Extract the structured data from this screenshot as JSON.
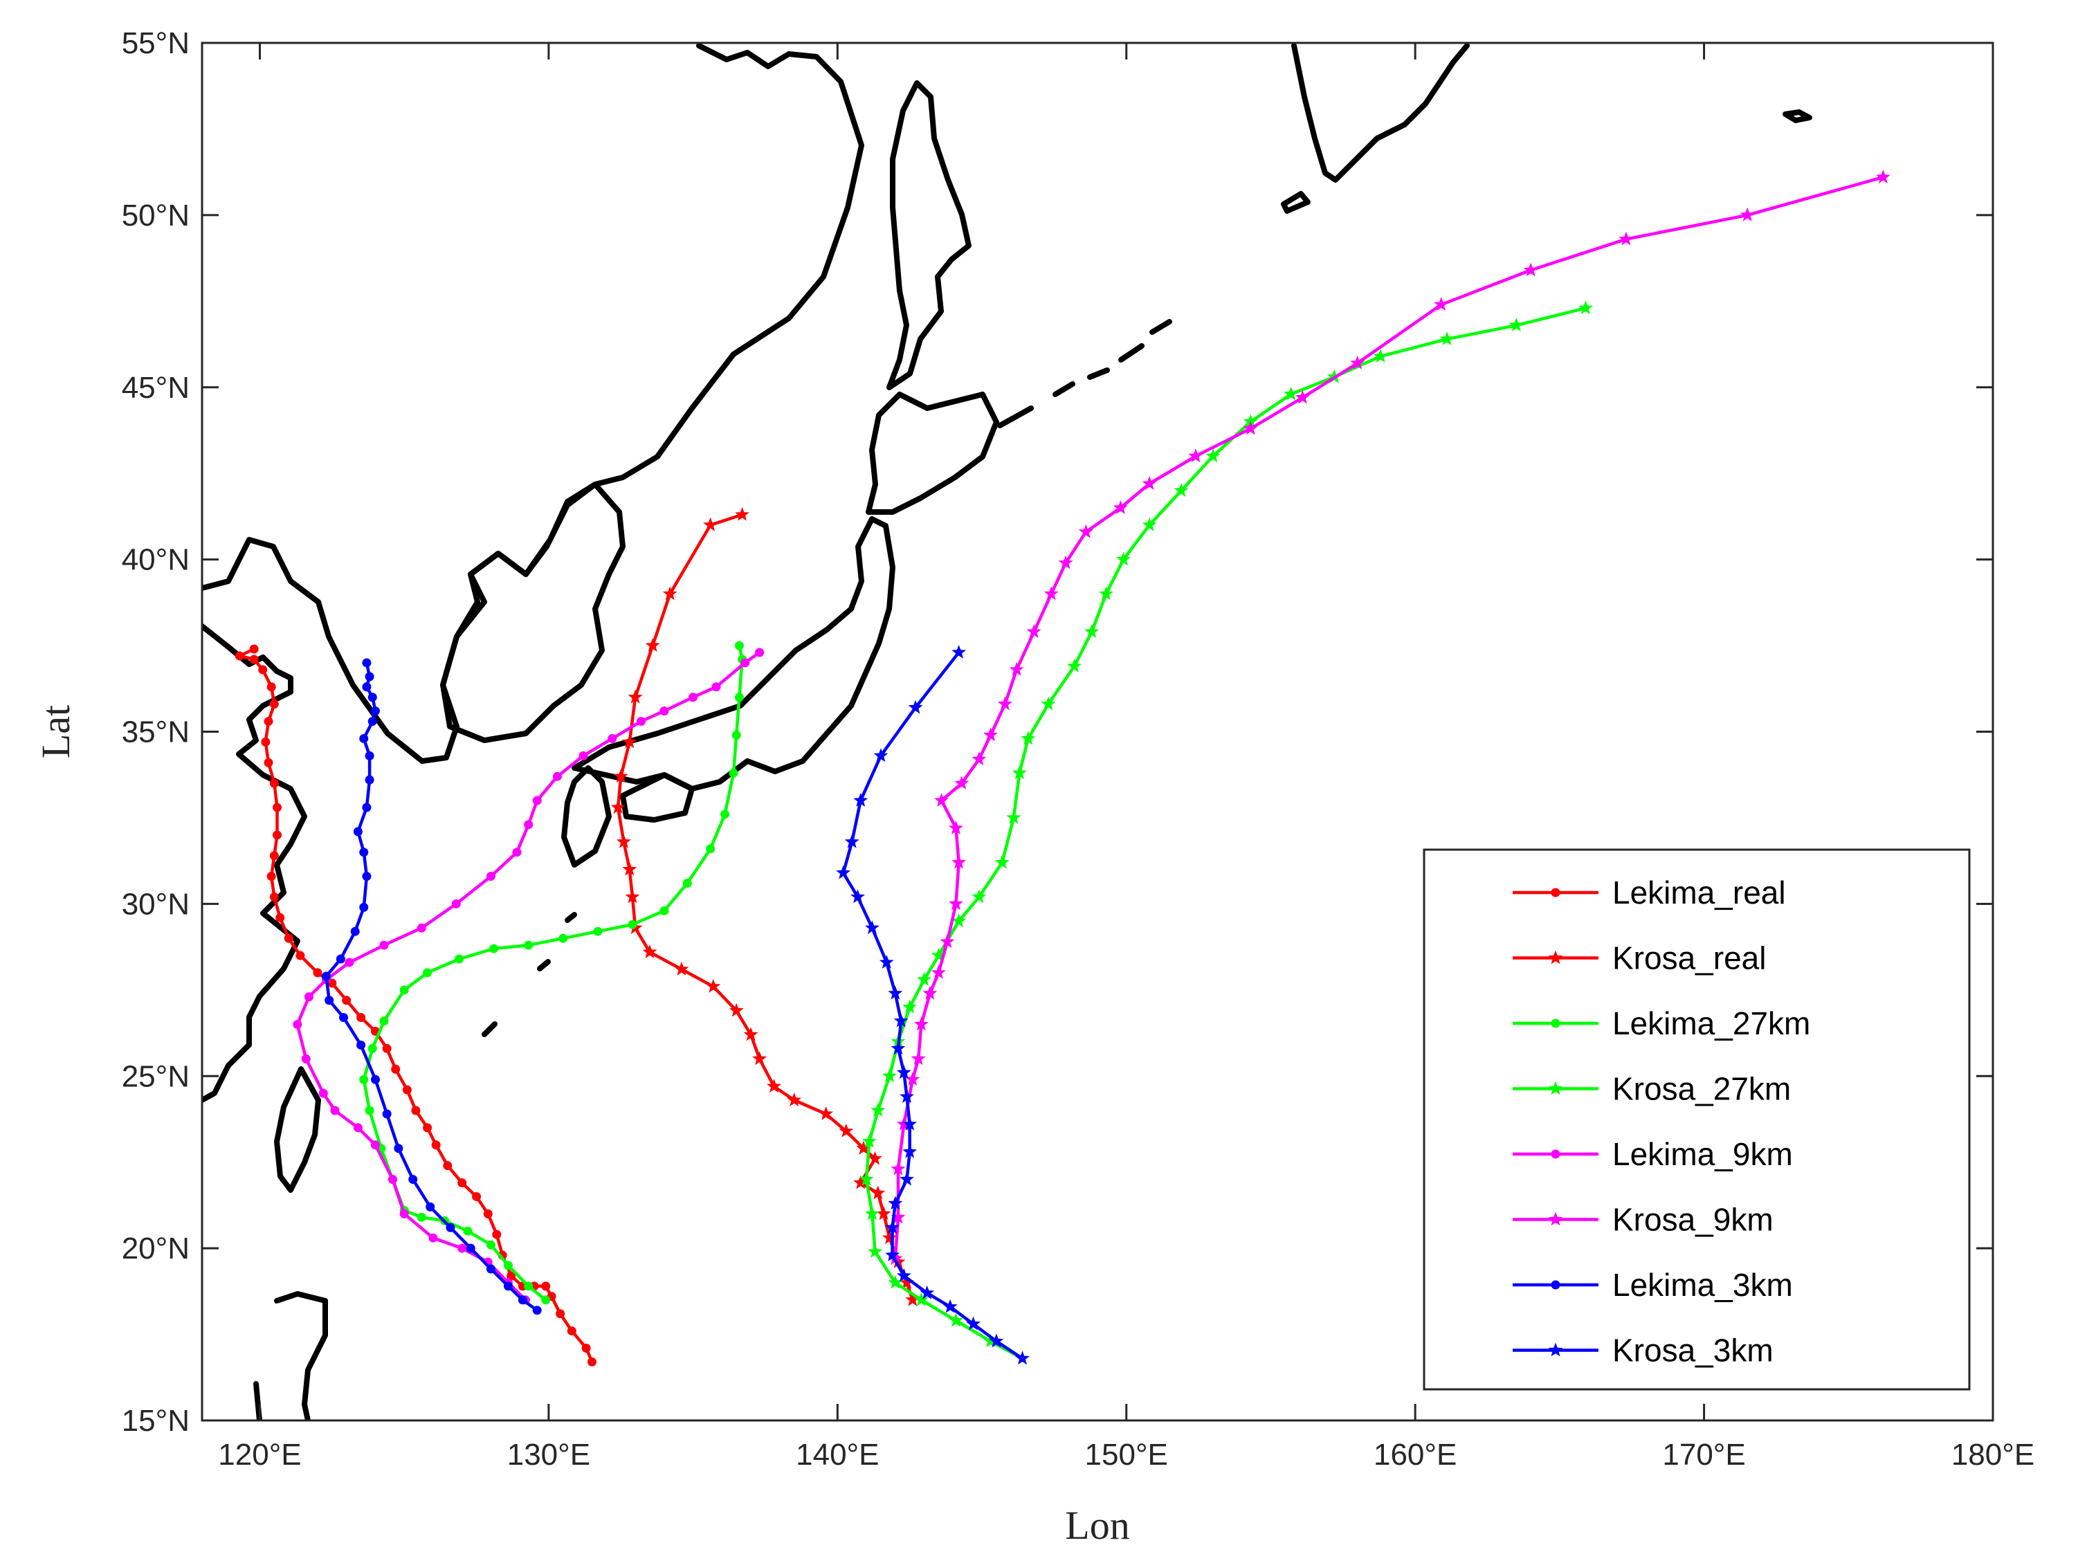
{
  "chart_data": {
    "type": "line",
    "title": "",
    "xlabel": "Lon",
    "ylabel": "Lat",
    "xlim": [
      118,
      180
    ],
    "ylim": [
      15,
      55
    ],
    "xticks": [
      {
        "value": 120,
        "label": "120°E"
      },
      {
        "value": 130,
        "label": "130°E"
      },
      {
        "value": 140,
        "label": "140°E"
      },
      {
        "value": 150,
        "label": "150°E"
      },
      {
        "value": 160,
        "label": "160°E"
      },
      {
        "value": 170,
        "label": "170°E"
      },
      {
        "value": 180,
        "label": "180°E"
      }
    ],
    "yticks": [
      {
        "value": 15,
        "label": "15°N"
      },
      {
        "value": 20,
        "label": "20°N"
      },
      {
        "value": 25,
        "label": "25°N"
      },
      {
        "value": 30,
        "label": "30°N"
      },
      {
        "value": 35,
        "label": "35°N"
      },
      {
        "value": 40,
        "label": "40°N"
      },
      {
        "value": 45,
        "label": "45°N"
      },
      {
        "value": 50,
        "label": "50°N"
      },
      {
        "value": 55,
        "label": "55°N"
      }
    ],
    "grid": false,
    "legend_position": "lower-right",
    "background_map": "coastlines",
    "colors": {
      "red": "#ff0000",
      "green": "#00ff00",
      "magenta": "#ff00ff",
      "blue": "#0000ff",
      "coast": "#000000"
    },
    "series": [
      {
        "name": "Lekima_real",
        "color": "#ff0000",
        "marker": "dot",
        "points": [
          [
            131.5,
            16.7
          ],
          [
            131.3,
            17.1
          ],
          [
            130.8,
            17.6
          ],
          [
            130.4,
            18.1
          ],
          [
            130.1,
            18.6
          ],
          [
            129.9,
            18.9
          ],
          [
            129.5,
            18.9
          ],
          [
            129.1,
            18.9
          ],
          [
            128.7,
            19.2
          ],
          [
            128.4,
            19.8
          ],
          [
            128.2,
            20.4
          ],
          [
            127.9,
            21.0
          ],
          [
            127.5,
            21.5
          ],
          [
            127.0,
            21.9
          ],
          [
            126.5,
            22.4
          ],
          [
            126.1,
            23.0
          ],
          [
            125.8,
            23.5
          ],
          [
            125.4,
            24.0
          ],
          [
            125.1,
            24.6
          ],
          [
            124.7,
            25.2
          ],
          [
            124.4,
            25.8
          ],
          [
            124.0,
            26.3
          ],
          [
            123.5,
            26.7
          ],
          [
            123.0,
            27.2
          ],
          [
            122.5,
            27.7
          ],
          [
            122.0,
            28.0
          ],
          [
            121.4,
            28.5
          ],
          [
            121.0,
            29.0
          ],
          [
            120.7,
            29.6
          ],
          [
            120.5,
            30.2
          ],
          [
            120.4,
            30.8
          ],
          [
            120.5,
            31.4
          ],
          [
            120.6,
            32.0
          ],
          [
            120.6,
            32.8
          ],
          [
            120.5,
            33.5
          ],
          [
            120.3,
            34.1
          ],
          [
            120.2,
            34.7
          ],
          [
            120.3,
            35.3
          ],
          [
            120.5,
            35.8
          ],
          [
            120.4,
            36.3
          ],
          [
            120.1,
            36.8
          ],
          [
            119.8,
            37.1
          ],
          [
            119.3,
            37.2
          ],
          [
            119.8,
            37.4
          ]
        ]
      },
      {
        "name": "Krosa_real",
        "color": "#ff0000",
        "marker": "star",
        "points": [
          [
            142.6,
            18.5
          ],
          [
            142.4,
            19.0
          ],
          [
            142.1,
            19.6
          ],
          [
            141.8,
            20.3
          ],
          [
            141.6,
            21.0
          ],
          [
            141.4,
            21.6
          ],
          [
            140.8,
            21.9
          ],
          [
            141.3,
            22.6
          ],
          [
            140.9,
            22.9
          ],
          [
            140.3,
            23.4
          ],
          [
            139.6,
            23.9
          ],
          [
            138.5,
            24.3
          ],
          [
            137.8,
            24.7
          ],
          [
            137.3,
            25.5
          ],
          [
            137.0,
            26.2
          ],
          [
            136.5,
            26.9
          ],
          [
            135.7,
            27.6
          ],
          [
            134.6,
            28.1
          ],
          [
            133.5,
            28.6
          ],
          [
            133.0,
            29.3
          ],
          [
            132.9,
            30.2
          ],
          [
            132.8,
            31.0
          ],
          [
            132.6,
            31.8
          ],
          [
            132.4,
            32.8
          ],
          [
            132.5,
            33.7
          ],
          [
            132.8,
            34.7
          ],
          [
            133.0,
            36.0
          ],
          [
            133.6,
            37.5
          ],
          [
            134.2,
            39.0
          ],
          [
            135.6,
            41.0
          ],
          [
            136.7,
            41.3
          ]
        ]
      },
      {
        "name": "Lekima_27km",
        "color": "#00ff00",
        "marker": "dot",
        "points": [
          [
            129.9,
            18.5
          ],
          [
            129.3,
            18.9
          ],
          [
            128.6,
            19.5
          ],
          [
            128.0,
            20.1
          ],
          [
            127.2,
            20.5
          ],
          [
            126.4,
            20.8
          ],
          [
            125.6,
            20.9
          ],
          [
            125.0,
            21.1
          ],
          [
            124.6,
            22.0
          ],
          [
            124.2,
            22.9
          ],
          [
            123.8,
            24.0
          ],
          [
            123.6,
            24.9
          ],
          [
            123.9,
            25.8
          ],
          [
            124.3,
            26.6
          ],
          [
            125.0,
            27.5
          ],
          [
            125.8,
            28.0
          ],
          [
            126.9,
            28.4
          ],
          [
            128.1,
            28.7
          ],
          [
            129.3,
            28.8
          ],
          [
            130.5,
            29.0
          ],
          [
            131.7,
            29.2
          ],
          [
            132.9,
            29.4
          ],
          [
            134.0,
            29.8
          ],
          [
            134.8,
            30.6
          ],
          [
            135.6,
            31.6
          ],
          [
            136.1,
            32.6
          ],
          [
            136.4,
            33.8
          ],
          [
            136.5,
            34.9
          ],
          [
            136.6,
            36.0
          ],
          [
            136.7,
            37.1
          ],
          [
            136.6,
            37.5
          ]
        ]
      },
      {
        "name": "Krosa_27km",
        "color": "#00ff00",
        "marker": "star",
        "points": [
          [
            146.4,
            16.8
          ],
          [
            145.3,
            17.3
          ],
          [
            144.1,
            17.9
          ],
          [
            142.9,
            18.5
          ],
          [
            142.0,
            19.0
          ],
          [
            141.3,
            19.9
          ],
          [
            141.2,
            21.0
          ],
          [
            141.0,
            22.0
          ],
          [
            141.1,
            23.1
          ],
          [
            141.4,
            24.0
          ],
          [
            141.8,
            25.0
          ],
          [
            142.1,
            26.0
          ],
          [
            142.5,
            27.0
          ],
          [
            143.0,
            27.8
          ],
          [
            143.5,
            28.5
          ],
          [
            144.2,
            29.5
          ],
          [
            144.9,
            30.2
          ],
          [
            145.7,
            31.2
          ],
          [
            146.1,
            32.5
          ],
          [
            146.3,
            33.8
          ],
          [
            146.6,
            34.8
          ],
          [
            147.3,
            35.8
          ],
          [
            148.2,
            36.9
          ],
          [
            148.8,
            37.9
          ],
          [
            149.3,
            39.0
          ],
          [
            149.9,
            40.0
          ],
          [
            150.8,
            41.0
          ],
          [
            151.9,
            42.0
          ],
          [
            153.0,
            43.0
          ],
          [
            154.3,
            44.0
          ],
          [
            155.7,
            44.8
          ],
          [
            157.2,
            45.3
          ],
          [
            158.8,
            45.9
          ],
          [
            161.1,
            46.4
          ],
          [
            163.5,
            46.8
          ],
          [
            165.9,
            47.3
          ]
        ]
      },
      {
        "name": "Lekima_9km",
        "color": "#ff00ff",
        "marker": "dot",
        "points": [
          [
            129.2,
            18.5
          ],
          [
            128.6,
            19.0
          ],
          [
            127.9,
            19.6
          ],
          [
            127.0,
            20.0
          ],
          [
            126.0,
            20.3
          ],
          [
            125.0,
            21.0
          ],
          [
            124.6,
            22.0
          ],
          [
            124.0,
            23.0
          ],
          [
            123.4,
            23.5
          ],
          [
            122.6,
            24.0
          ],
          [
            122.2,
            24.5
          ],
          [
            121.6,
            25.5
          ],
          [
            121.3,
            26.5
          ],
          [
            121.7,
            27.3
          ],
          [
            122.3,
            27.8
          ],
          [
            123.1,
            28.3
          ],
          [
            124.3,
            28.8
          ],
          [
            125.6,
            29.3
          ],
          [
            126.8,
            30.0
          ],
          [
            128.0,
            30.8
          ],
          [
            128.9,
            31.5
          ],
          [
            129.3,
            32.3
          ],
          [
            129.6,
            33.0
          ],
          [
            130.3,
            33.7
          ],
          [
            131.2,
            34.3
          ],
          [
            132.2,
            34.8
          ],
          [
            133.2,
            35.3
          ],
          [
            134.0,
            35.6
          ],
          [
            135.0,
            36.0
          ],
          [
            135.8,
            36.3
          ],
          [
            136.8,
            37.0
          ],
          [
            137.3,
            37.3
          ]
        ]
      },
      {
        "name": "Krosa_9km",
        "color": "#ff00ff",
        "marker": "star",
        "points": [
          [
            142.0,
            19.7
          ],
          [
            142.1,
            20.9
          ],
          [
            142.1,
            22.3
          ],
          [
            142.3,
            23.6
          ],
          [
            142.6,
            24.9
          ],
          [
            142.8,
            25.5
          ],
          [
            142.9,
            26.5
          ],
          [
            143.2,
            27.4
          ],
          [
            143.5,
            28.0
          ],
          [
            143.8,
            28.9
          ],
          [
            144.1,
            30.0
          ],
          [
            144.2,
            31.2
          ],
          [
            144.1,
            32.2
          ],
          [
            143.6,
            33.0
          ],
          [
            144.3,
            33.5
          ],
          [
            144.9,
            34.2
          ],
          [
            145.3,
            34.9
          ],
          [
            145.8,
            35.8
          ],
          [
            146.2,
            36.8
          ],
          [
            146.8,
            37.9
          ],
          [
            147.4,
            39.0
          ],
          [
            147.9,
            39.9
          ],
          [
            148.6,
            40.8
          ],
          [
            149.8,
            41.5
          ],
          [
            150.8,
            42.2
          ],
          [
            152.4,
            43.0
          ],
          [
            154.3,
            43.8
          ],
          [
            156.1,
            44.7
          ],
          [
            158.0,
            45.7
          ],
          [
            160.9,
            47.4
          ],
          [
            164.0,
            48.4
          ],
          [
            167.3,
            49.3
          ],
          [
            171.5,
            50.0
          ],
          [
            176.2,
            51.1
          ]
        ]
      },
      {
        "name": "Lekima_3km",
        "color": "#0000ff",
        "marker": "dot",
        "points": [
          [
            129.6,
            18.2
          ],
          [
            129.1,
            18.5
          ],
          [
            128.6,
            18.9
          ],
          [
            128.0,
            19.4
          ],
          [
            127.3,
            20.0
          ],
          [
            126.6,
            20.6
          ],
          [
            125.9,
            21.2
          ],
          [
            125.3,
            22.0
          ],
          [
            124.8,
            22.9
          ],
          [
            124.4,
            23.9
          ],
          [
            124.0,
            24.9
          ],
          [
            123.5,
            25.9
          ],
          [
            122.9,
            26.7
          ],
          [
            122.4,
            27.2
          ],
          [
            122.3,
            27.9
          ],
          [
            122.8,
            28.4
          ],
          [
            123.3,
            29.2
          ],
          [
            123.6,
            29.9
          ],
          [
            123.7,
            30.8
          ],
          [
            123.6,
            31.5
          ],
          [
            123.4,
            32.1
          ],
          [
            123.7,
            32.8
          ],
          [
            123.8,
            33.6
          ],
          [
            123.8,
            34.3
          ],
          [
            123.6,
            34.8
          ],
          [
            123.9,
            35.3
          ],
          [
            124.0,
            35.6
          ],
          [
            123.9,
            36.0
          ],
          [
            123.7,
            36.3
          ],
          [
            123.8,
            36.6
          ],
          [
            123.7,
            37.0
          ]
        ]
      },
      {
        "name": "Krosa_3km",
        "color": "#0000ff",
        "marker": "star",
        "points": [
          [
            146.4,
            16.8
          ],
          [
            145.5,
            17.3
          ],
          [
            144.7,
            17.8
          ],
          [
            143.9,
            18.3
          ],
          [
            143.1,
            18.7
          ],
          [
            142.3,
            19.2
          ],
          [
            141.9,
            19.8
          ],
          [
            141.9,
            20.6
          ],
          [
            142.0,
            21.3
          ],
          [
            142.4,
            22.0
          ],
          [
            142.5,
            22.8
          ],
          [
            142.5,
            23.6
          ],
          [
            142.4,
            24.4
          ],
          [
            142.3,
            25.1
          ],
          [
            142.1,
            25.8
          ],
          [
            142.2,
            26.6
          ],
          [
            142.0,
            27.4
          ],
          [
            141.7,
            28.3
          ],
          [
            141.2,
            29.3
          ],
          [
            140.7,
            30.2
          ],
          [
            140.2,
            30.9
          ],
          [
            140.5,
            31.8
          ],
          [
            140.8,
            33.0
          ],
          [
            141.5,
            34.3
          ],
          [
            142.7,
            35.7
          ],
          [
            144.2,
            37.3
          ]
        ]
      }
    ]
  }
}
